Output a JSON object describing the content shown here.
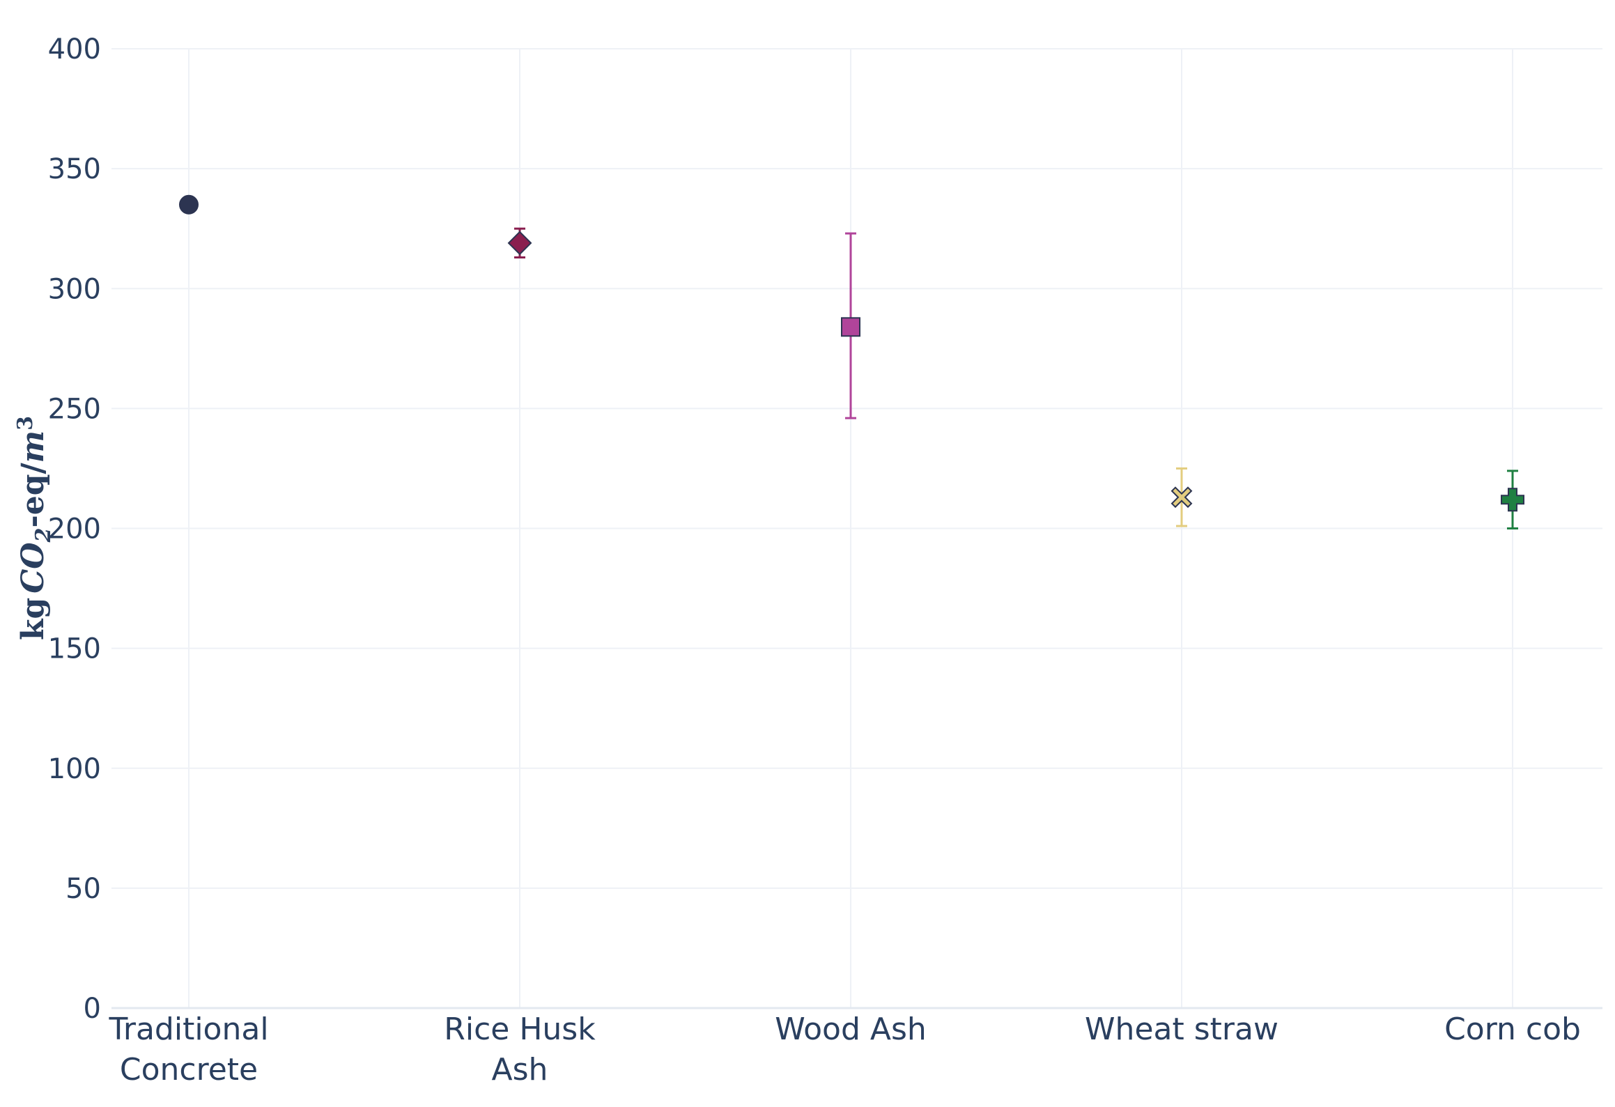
{
  "chart_data": {
    "type": "scatter",
    "title": "",
    "xlabel": "",
    "ylabel": {
      "prefix": "kg",
      "main": "CO",
      "sub": "2",
      "suffix": "-eq/",
      "unit": "m",
      "sup": "3"
    },
    "ylim": [
      0,
      400
    ],
    "yticks": [
      0,
      50,
      100,
      150,
      200,
      250,
      300,
      350,
      400
    ],
    "grid": true,
    "categories": [
      [
        "Traditional",
        "Concrete"
      ],
      [
        "Rice Husk",
        "Ash"
      ],
      [
        "Wood Ash"
      ],
      [
        "Wheat straw"
      ],
      [
        "Corn cob"
      ]
    ],
    "points": [
      {
        "category": "Traditional Concrete",
        "y": 335,
        "err_low": 335,
        "err_high": 335,
        "marker": "circle",
        "color": "#2c3451"
      },
      {
        "category": "Rice Husk Ash",
        "y": 319,
        "err_low": 313,
        "err_high": 325,
        "marker": "diamond",
        "color": "#8a1f4f"
      },
      {
        "category": "Wood Ash",
        "y": 284,
        "err_low": 246,
        "err_high": 323,
        "marker": "square",
        "color": "#b0449a"
      },
      {
        "category": "Wheat straw",
        "y": 213,
        "err_low": 201,
        "err_high": 225,
        "marker": "x",
        "color": "#e3cd7f"
      },
      {
        "category": "Corn cob",
        "y": 212,
        "err_low": 200,
        "err_high": 224,
        "marker": "cross",
        "color": "#1f8042"
      }
    ]
  }
}
